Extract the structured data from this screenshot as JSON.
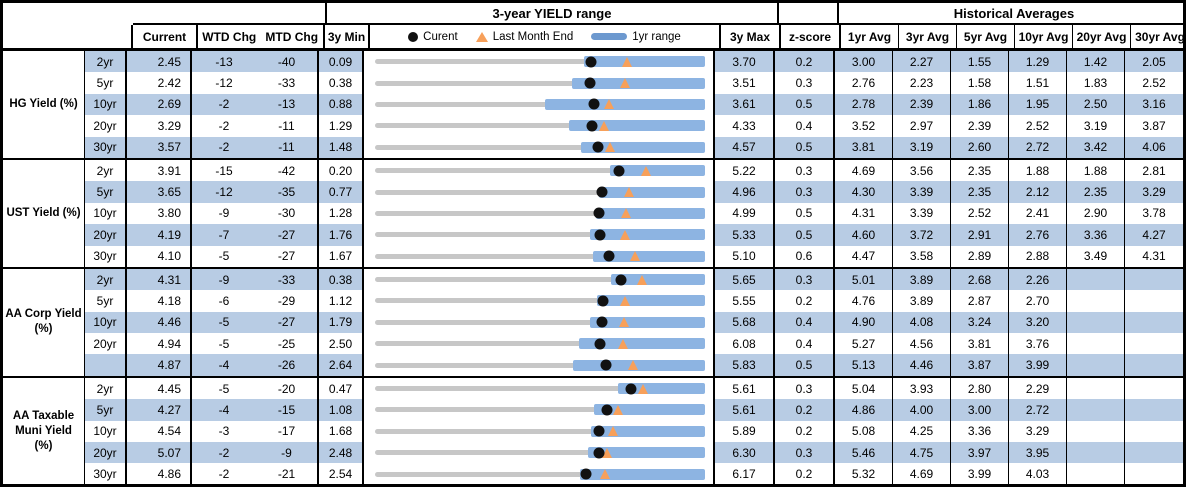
{
  "header": {
    "range_title": "3-year YIELD range",
    "hist_title": "Historical Averages",
    "col_current": "Current",
    "col_wtd": "WTD Chg",
    "col_mtd": "MTD Chg",
    "col_min": "3y Min",
    "col_max": "3y Max",
    "col_z": "z-score",
    "avg_cols": [
      "1yr Avg",
      "3yr Avg",
      "5yr Avg",
      "10yr Avg",
      "20yr Avg",
      "30yr Avg"
    ],
    "legend": {
      "current": "Curent",
      "last_month": "Last Month End",
      "range": "1yr range"
    }
  },
  "colors": {
    "stripe": "#b8cce4",
    "bar_1yr_range": "#8db4e2",
    "track_3yr_range": "#c7c7c7",
    "current_dot": "#111111",
    "last_month_triangle": "#f7a05a",
    "legend_bar": "#6d99cf",
    "border": "#000000"
  },
  "chart_data": {
    "type": "table",
    "note": "Each row shows a 3-year yield range track (min to max), a 1yr-range blue bar (yr1_low to max), a black dot at current and an orange triangle at last_month (current - mtd/100). yr1_low and last_month are estimated from the chart.",
    "groups": [
      {
        "label": "HG Yield (%)",
        "rows": [
          {
            "tenor": "2yr",
            "current": "2.45",
            "wtd": "-13",
            "mtd": "-40",
            "min": "0.09",
            "max": "3.70",
            "z": "0.2",
            "last_month": 2.85,
            "yr1_low": 2.38,
            "striped": true,
            "avgs": [
              "3.00",
              "2.27",
              "1.55",
              "1.29",
              "1.42",
              "2.05"
            ]
          },
          {
            "tenor": "5yr",
            "current": "2.42",
            "wtd": "-12",
            "mtd": "-33",
            "min": "0.38",
            "max": "3.51",
            "z": "0.3",
            "last_month": 2.75,
            "yr1_low": 2.25,
            "striped": false,
            "avgs": [
              "2.76",
              "2.23",
              "1.58",
              "1.51",
              "1.83",
              "2.52"
            ]
          },
          {
            "tenor": "10yr",
            "current": "2.69",
            "wtd": "-2",
            "mtd": "-13",
            "min": "0.88",
            "max": "3.61",
            "z": "0.5",
            "last_month": 2.82,
            "yr1_low": 2.29,
            "striped": true,
            "avgs": [
              "2.78",
              "2.39",
              "1.86",
              "1.95",
              "2.50",
              "3.16"
            ]
          },
          {
            "tenor": "20yr",
            "current": "3.29",
            "wtd": "-2",
            "mtd": "-11",
            "min": "1.29",
            "max": "4.33",
            "z": "0.4",
            "last_month": 3.4,
            "yr1_low": 3.08,
            "striped": false,
            "avgs": [
              "3.52",
              "2.97",
              "2.39",
              "2.52",
              "3.19",
              "3.87"
            ]
          },
          {
            "tenor": "30yr",
            "current": "3.57",
            "wtd": "-2",
            "mtd": "-11",
            "min": "1.48",
            "max": "4.57",
            "z": "0.5",
            "last_month": 3.68,
            "yr1_low": 3.41,
            "striped": true,
            "avgs": [
              "3.81",
              "3.19",
              "2.60",
              "2.72",
              "3.42",
              "4.06"
            ]
          }
        ]
      },
      {
        "label": "UST Yield (%)",
        "rows": [
          {
            "tenor": "2yr",
            "current": "3.91",
            "wtd": "-15",
            "mtd": "-42",
            "min": "0.20",
            "max": "5.22",
            "z": "0.3",
            "last_month": 4.33,
            "yr1_low": 3.78,
            "striped": false,
            "avgs": [
              "4.69",
              "3.56",
              "2.35",
              "1.88",
              "1.88",
              "2.81"
            ]
          },
          {
            "tenor": "5yr",
            "current": "3.65",
            "wtd": "-12",
            "mtd": "-35",
            "min": "0.77",
            "max": "4.96",
            "z": "0.3",
            "last_month": 4.0,
            "yr1_low": 3.62,
            "striped": true,
            "avgs": [
              "4.30",
              "3.39",
              "2.35",
              "2.12",
              "2.35",
              "3.29"
            ]
          },
          {
            "tenor": "10yr",
            "current": "3.80",
            "wtd": "-9",
            "mtd": "-30",
            "min": "1.28",
            "max": "4.99",
            "z": "0.5",
            "last_month": 4.1,
            "yr1_low": 3.77,
            "striped": false,
            "avgs": [
              "4.31",
              "3.39",
              "2.52",
              "2.41",
              "2.90",
              "3.78"
            ]
          },
          {
            "tenor": "20yr",
            "current": "4.19",
            "wtd": "-7",
            "mtd": "-27",
            "min": "1.76",
            "max": "5.33",
            "z": "0.5",
            "last_month": 4.46,
            "yr1_low": 4.09,
            "striped": true,
            "avgs": [
              "4.60",
              "3.72",
              "2.91",
              "2.76",
              "3.36",
              "4.27"
            ]
          },
          {
            "tenor": "30yr",
            "current": "4.10",
            "wtd": "-5",
            "mtd": "-27",
            "min": "1.67",
            "max": "5.10",
            "z": "0.6",
            "last_month": 4.37,
            "yr1_low": 3.94,
            "striped": false,
            "avgs": [
              "4.47",
              "3.58",
              "2.89",
              "2.88",
              "3.49",
              "4.31"
            ]
          }
        ]
      },
      {
        "label": "AA Corp Yield (%)",
        "rows": [
          {
            "tenor": "2yr",
            "current": "4.31",
            "wtd": "-9",
            "mtd": "-33",
            "min": "0.38",
            "max": "5.65",
            "z": "0.3",
            "last_month": 4.64,
            "yr1_low": 4.15,
            "striped": true,
            "avgs": [
              "5.01",
              "3.89",
              "2.68",
              "2.26",
              "",
              ""
            ]
          },
          {
            "tenor": "5yr",
            "current": "4.18",
            "wtd": "-6",
            "mtd": "-29",
            "min": "1.12",
            "max": "5.55",
            "z": "0.2",
            "last_month": 4.47,
            "yr1_low": 4.1,
            "striped": false,
            "avgs": [
              "4.76",
              "3.89",
              "2.87",
              "2.70",
              "",
              ""
            ]
          },
          {
            "tenor": "10yr",
            "current": "4.46",
            "wtd": "-5",
            "mtd": "-27",
            "min": "1.79",
            "max": "5.68",
            "z": "0.4",
            "last_month": 4.73,
            "yr1_low": 4.32,
            "striped": true,
            "avgs": [
              "4.90",
              "4.08",
              "3.24",
              "3.20",
              "",
              ""
            ]
          },
          {
            "tenor": "20yr",
            "current": "4.94",
            "wtd": "-5",
            "mtd": "-25",
            "min": "2.50",
            "max": "6.08",
            "z": "0.4",
            "last_month": 5.19,
            "yr1_low": 4.71,
            "striped": false,
            "avgs": [
              "5.27",
              "4.56",
              "3.81",
              "3.76",
              "",
              ""
            ]
          },
          {
            "tenor": "",
            "current": "4.87",
            "wtd": "-4",
            "mtd": "-26",
            "min": "2.64",
            "max": "5.83",
            "z": "0.5",
            "last_month": 5.13,
            "yr1_low": 4.55,
            "striped": true,
            "avgs": [
              "5.13",
              "4.46",
              "3.87",
              "3.99",
              "",
              ""
            ]
          }
        ]
      },
      {
        "label": "AA Taxable Muni Yield (%)",
        "rows": [
          {
            "tenor": "2yr",
            "current": "4.45",
            "wtd": "-5",
            "mtd": "-20",
            "min": "0.47",
            "max": "5.61",
            "z": "0.3",
            "last_month": 4.65,
            "yr1_low": 4.25,
            "striped": false,
            "avgs": [
              "5.04",
              "3.93",
              "2.80",
              "2.29",
              "",
              ""
            ]
          },
          {
            "tenor": "5yr",
            "current": "4.27",
            "wtd": "-4",
            "mtd": "-15",
            "min": "1.08",
            "max": "5.61",
            "z": "0.2",
            "last_month": 4.42,
            "yr1_low": 4.09,
            "striped": true,
            "avgs": [
              "4.86",
              "4.00",
              "3.00",
              "2.72",
              "",
              ""
            ]
          },
          {
            "tenor": "10yr",
            "current": "4.54",
            "wtd": "-3",
            "mtd": "-17",
            "min": "1.68",
            "max": "5.89",
            "z": "0.2",
            "last_month": 4.71,
            "yr1_low": 4.44,
            "striped": false,
            "avgs": [
              "5.08",
              "4.25",
              "3.36",
              "3.29",
              "",
              ""
            ]
          },
          {
            "tenor": "20yr",
            "current": "5.07",
            "wtd": "-2",
            "mtd": "-9",
            "min": "2.48",
            "max": "6.30",
            "z": "0.3",
            "last_month": 5.16,
            "yr1_low": 4.94,
            "striped": true,
            "avgs": [
              "5.46",
              "4.75",
              "3.97",
              "3.95",
              "",
              ""
            ]
          },
          {
            "tenor": "30yr",
            "current": "4.86",
            "wtd": "-2",
            "mtd": "-21",
            "min": "2.54",
            "max": "6.17",
            "z": "0.2",
            "last_month": 5.07,
            "yr1_low": 4.79,
            "striped": false,
            "avgs": [
              "5.32",
              "4.69",
              "3.99",
              "4.03",
              "",
              ""
            ]
          }
        ]
      }
    ]
  }
}
